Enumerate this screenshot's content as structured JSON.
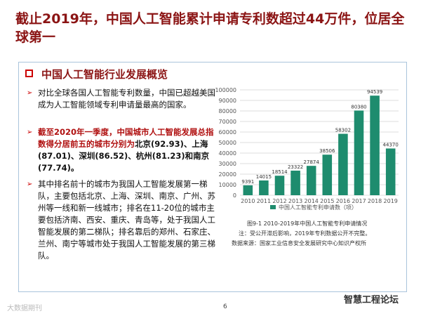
{
  "header": {
    "title": "截止2019年，中国人工智能累计申请专利数超过44万件，位居全球第一"
  },
  "section": {
    "heading": "中国人工智能行业发展概览",
    "bullets": [
      {
        "text": "对比全球各国人工智能专利数量，中国已超越美国成为人工智能领域专利申请量最高的国家。"
      },
      {
        "lead": "截至2020年一季度，中国城市人工智能发展总指数得分居前五的城市分别为",
        "text": "北京(92.93)、上海(87.01)、深圳(86.52)、杭州(81.23)和南京(77.74)。"
      },
      {
        "text": "其中排名前十的城市为我国人工智能发展第一梯队，主要包括北京、上海、深圳、南京、广州、苏州等一线和新一线城市；排名在11-20位的城市主要包括济南、西安、重庆、青岛等，处于我国人工智能发展的第二梯队；排名靠后的郑州、石家庄、兰州、南宁等城市处于我国人工智能发展的第三梯队。"
      }
    ]
  },
  "chart_data": {
    "type": "bar",
    "categories": [
      "2010",
      "2011",
      "2012",
      "2013",
      "2014",
      "2015",
      "2016",
      "2017",
      "2018",
      "2019"
    ],
    "series": [
      {
        "name": "中国人工智能专利申请数（项）",
        "color": "#1e8c6e",
        "values": [
          9391,
          14015,
          18514,
          23322,
          27874,
          38506,
          58302,
          80380,
          94539,
          44370
        ]
      }
    ],
    "ylim": [
      0,
      100000
    ],
    "yticks": [
      0,
      10000,
      20000,
      30000,
      40000,
      50000,
      60000,
      70000,
      80000,
      90000,
      100000
    ],
    "grid": true,
    "caption": "图9-1  2010-2019年中国人工智能专利申请情况",
    "note": "注：受公开滞后影响，2019年专利数据公开不完整。",
    "source": "数据来源：国家工业信息安全发展研究中心知识产权所"
  },
  "footer": {
    "page": "6",
    "watermark_left": "大数据期刊",
    "watermark_right": "智慧工程论坛"
  }
}
